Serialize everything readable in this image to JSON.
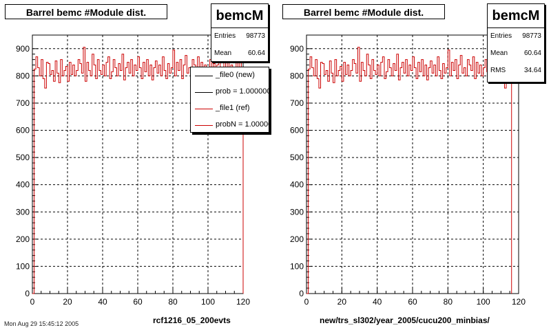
{
  "chart_data": [
    {
      "type": "histogram",
      "title": "Barrel bemc #Module dist.",
      "xlabel": "rcf1216_05_200evts",
      "xlim": [
        0,
        120
      ],
      "ylim": [
        0,
        950
      ],
      "xticks": [
        0,
        20,
        40,
        60,
        80,
        100,
        120
      ],
      "yticks": [
        0,
        100,
        200,
        300,
        400,
        500,
        600,
        700,
        800,
        900
      ],
      "grid": true,
      "bin_width": 1,
      "series": [
        {
          "name": "_file1 (ref)",
          "color": "#cc0000",
          "values": [
            0,
            825,
            870,
            830,
            800,
            860,
            790,
            755,
            850,
            845,
            805,
            820,
            780,
            855,
            810,
            775,
            860,
            800,
            820,
            835,
            780,
            850,
            805,
            840,
            800,
            820,
            860,
            845,
            810,
            905,
            780,
            850,
            820,
            800,
            880,
            840,
            790,
            860,
            820,
            805,
            840,
            800,
            850,
            870,
            790,
            815,
            860,
            830,
            800,
            845,
            820,
            880,
            785,
            830,
            850,
            810,
            860,
            800,
            840,
            820,
            870,
            830,
            790,
            850,
            815,
            860,
            800,
            840,
            785,
            830,
            855,
            810,
            840,
            800,
            870,
            820,
            790,
            845,
            810,
            830,
            895,
            800,
            850,
            820,
            860,
            790,
            840,
            875,
            810,
            830,
            800,
            860,
            840,
            820,
            870,
            790,
            850,
            810,
            840,
            800,
            830,
            860,
            815,
            845,
            790,
            840,
            880,
            820,
            800,
            850,
            830,
            860,
            780,
            840,
            820,
            810,
            870,
            830,
            850,
            800
          ]
        }
      ],
      "stats": {
        "name": "bemcM",
        "entries_label": "Entries",
        "entries": "98773",
        "mean_label": "Mean",
        "mean": "60.64"
      },
      "legend": [
        {
          "label": "_file0 (new)",
          "color": "#000000"
        },
        {
          "label": "prob = 1.000000",
          "color": "#000000"
        },
        {
          "label": "_file1 (ref)",
          "color": "#cc0000"
        },
        {
          "label": "probN = 1.000000",
          "color": "#cc0000"
        }
      ]
    },
    {
      "type": "histogram",
      "title": "Barrel bemc #Module dist.",
      "xlabel": "new/trs_sl302/year_2005/cucu200_minbias/",
      "xlim": [
        0,
        120
      ],
      "ylim": [
        0,
        950
      ],
      "xticks": [
        0,
        20,
        40,
        60,
        80,
        100,
        120
      ],
      "yticks": [
        0,
        100,
        200,
        300,
        400,
        500,
        600,
        700,
        800,
        900
      ],
      "grid": true,
      "bin_width": 1,
      "series": [
        {
          "name": "",
          "color": "#cc0000",
          "values": [
            0,
            825,
            870,
            830,
            800,
            860,
            790,
            755,
            850,
            845,
            805,
            820,
            780,
            855,
            810,
            775,
            860,
            800,
            820,
            835,
            780,
            850,
            805,
            840,
            800,
            820,
            860,
            845,
            810,
            905,
            780,
            850,
            820,
            800,
            880,
            840,
            790,
            860,
            820,
            805,
            840,
            800,
            850,
            870,
            790,
            815,
            860,
            830,
            800,
            845,
            820,
            880,
            785,
            830,
            850,
            810,
            860,
            800,
            840,
            820,
            870,
            830,
            790,
            850,
            815,
            860,
            800,
            840,
            785,
            830,
            855,
            810,
            840,
            800,
            870,
            820,
            790,
            845,
            810,
            830,
            895,
            800,
            850,
            820,
            860,
            790,
            840,
            875,
            810,
            830,
            800,
            860,
            840,
            820,
            870,
            790,
            850,
            810,
            840,
            800,
            830,
            860,
            815,
            845,
            790,
            840,
            880,
            820,
            800,
            850,
            830,
            860,
            755,
            840,
            820,
            810
          ]
        }
      ],
      "stats": {
        "name": "bemcM",
        "entries_label": "Entries",
        "entries": "98773",
        "mean_label": "Mean",
        "mean": "60.64",
        "rms_label": "RMS",
        "rms": "34.64"
      }
    }
  ],
  "footer": "Mon Aug 29 15:45:12 2005"
}
